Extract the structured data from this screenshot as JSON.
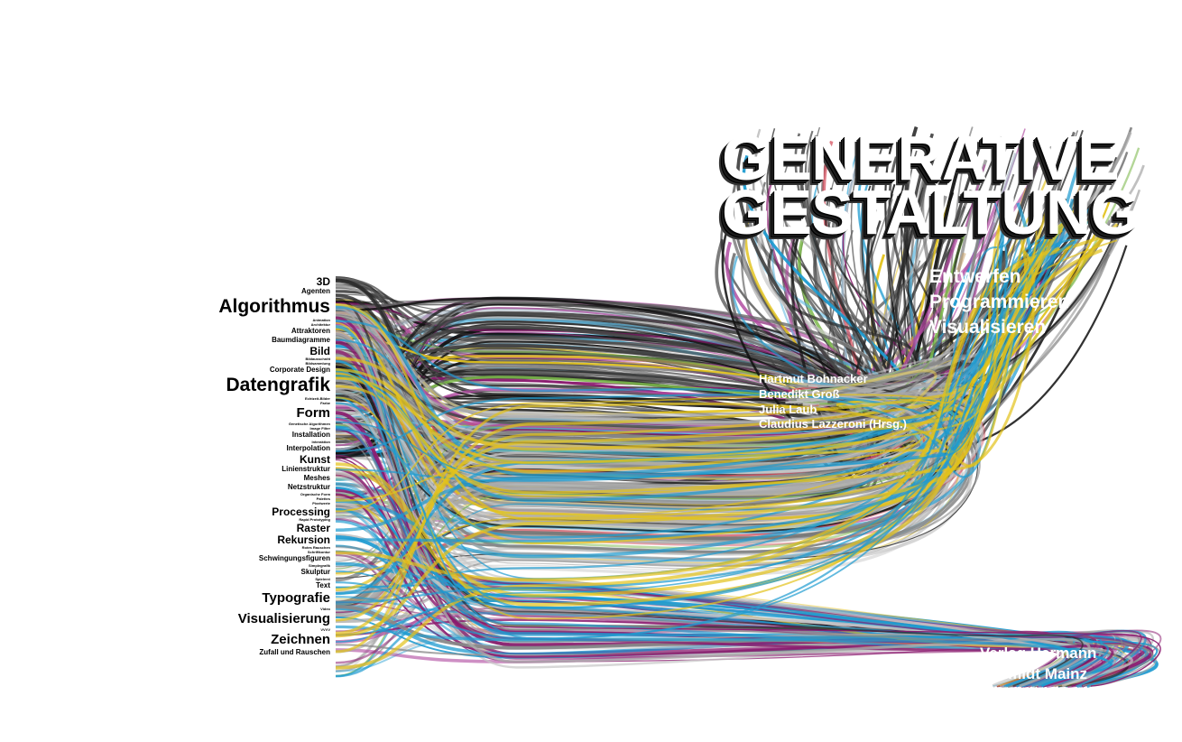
{
  "cover": {
    "title_line1": "GENERATIVE",
    "title_line2": "GESTALTUNG",
    "subtitles": [
      "Entwerfen",
      "Programmieren",
      "Visualisieren"
    ],
    "authors": [
      "Hartmut Bohnacker",
      "Benedikt Groß",
      "Julia Laub",
      "Claudius Lazzeroni (Hrsg.)"
    ],
    "publisher_line1": "Verlag Hermann",
    "publisher_line2": "Schmidt Mainz"
  },
  "keywords": [
    {
      "label": "3D",
      "size": "m"
    },
    {
      "label": "Agenten",
      "size": "s"
    },
    {
      "label": "Algorithmus",
      "size": "xl"
    },
    {
      "label": "Animation",
      "size": "xs"
    },
    {
      "label": "Architektur",
      "size": "xs"
    },
    {
      "label": "Attraktoren",
      "size": "s"
    },
    {
      "label": "Baumdiagramme",
      "size": "s"
    },
    {
      "label": "Bild",
      "size": "m"
    },
    {
      "label": "Bildausschnitt",
      "size": "xs"
    },
    {
      "label": "Bildsammlung",
      "size": "xs"
    },
    {
      "label": "Corporate Design",
      "size": "s"
    },
    {
      "label": "Datengrafik",
      "size": "xl"
    },
    {
      "label": "Echtzeit-Bilder",
      "size": "xs"
    },
    {
      "label": "Farbe",
      "size": "xs"
    },
    {
      "label": "Form",
      "size": "l"
    },
    {
      "label": "Genetische Algorithmen",
      "size": "xs"
    },
    {
      "label": "Image Filter",
      "size": "xs"
    },
    {
      "label": "Installation",
      "size": "s"
    },
    {
      "label": "Interaktion",
      "size": "xs"
    },
    {
      "label": "Interpolation",
      "size": "s"
    },
    {
      "label": "Kunst",
      "size": "m"
    },
    {
      "label": "Linienstruktur",
      "size": "s"
    },
    {
      "label": "Meshes",
      "size": "s"
    },
    {
      "label": "Netzstruktur",
      "size": "s"
    },
    {
      "label": "Organische Form",
      "size": "xs"
    },
    {
      "label": "Palettes",
      "size": "xs"
    },
    {
      "label": "Pixelwerte",
      "size": "xs"
    },
    {
      "label": "Processing",
      "size": "m"
    },
    {
      "label": "Rapid Prototyping",
      "size": "xs"
    },
    {
      "label": "Raster",
      "size": "m"
    },
    {
      "label": "Rekursion",
      "size": "m"
    },
    {
      "label": "Rotes Rauschen",
      "size": "xs"
    },
    {
      "label": "Schriftkontur",
      "size": "xs"
    },
    {
      "label": "Schwingungsfiguren",
      "size": "s"
    },
    {
      "label": "Simplegrafik",
      "size": "xs"
    },
    {
      "label": "Skulptur",
      "size": "s"
    },
    {
      "label": "Spielerei",
      "size": "xs"
    },
    {
      "label": "Text",
      "size": "s"
    },
    {
      "label": "Typografie",
      "size": "l"
    },
    {
      "label": "Video",
      "size": "xs"
    },
    {
      "label": "Visualisierung",
      "size": "l"
    },
    {
      "label": "VVVV",
      "size": "xs"
    },
    {
      "label": "Zeichnen",
      "size": "l"
    },
    {
      "label": "Zufall und Rauschen",
      "size": "s"
    }
  ],
  "strand_colors": [
    "#111111",
    "#2b2b2b",
    "#444444",
    "#666666",
    "#888888",
    "#aaaaaa",
    "#c8c8c8",
    "#e2c21a",
    "#f1d34a",
    "#1e9bd0",
    "#5cb8e0",
    "#8a1a6e",
    "#b04aa0",
    "#d44b5a",
    "#7bb84a",
    "#c9a26a",
    "#9fb0c0"
  ]
}
